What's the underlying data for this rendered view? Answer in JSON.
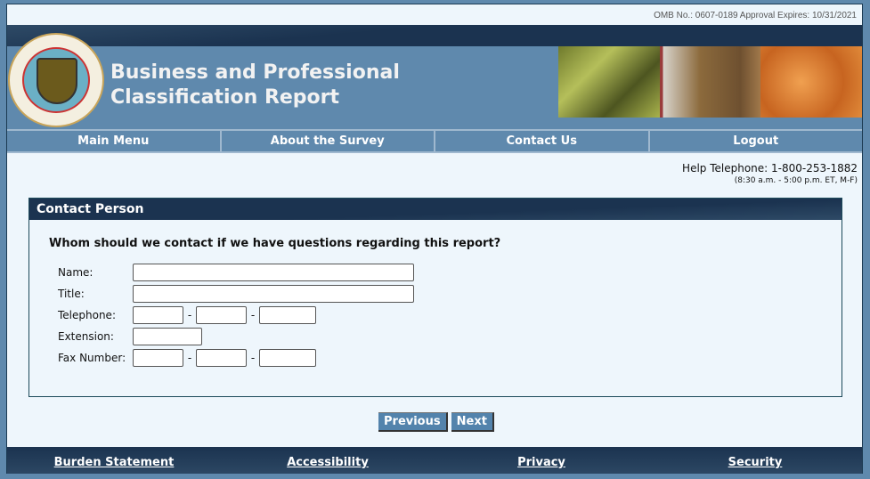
{
  "omb": "OMB No.: 0607-0189 Approval Expires: 10/31/2021",
  "seal": "U.S. DEPARTMENT OF COMMERCE · BUREAU OF THE CENSUS",
  "title_line1": "Business and Professional",
  "title_line2": "Classification Report",
  "nav": [
    "Main Menu",
    "About the Survey",
    "Contact Us",
    "Logout"
  ],
  "help": {
    "phone": "Help Telephone: 1-800-253-1882",
    "hours": "(8:30 a.m. - 5:00 p.m. ET, M-F)"
  },
  "section": {
    "title": "Contact Person",
    "question": "Whom should we contact if we have questions regarding this report?",
    "labels": {
      "name": "Name:",
      "title": "Title:",
      "telephone": "Telephone:",
      "extension": "Extension:",
      "fax": "Fax Number:"
    },
    "dash": "-"
  },
  "buttons": {
    "previous": "Previous",
    "next": "Next"
  },
  "footer": [
    "Burden Statement",
    "Accessibility",
    "Privacy",
    "Security"
  ],
  "colors": {
    "header_dark": "#1b3350",
    "banner": "#5f89ad",
    "page_bg": "#eef6fc"
  }
}
